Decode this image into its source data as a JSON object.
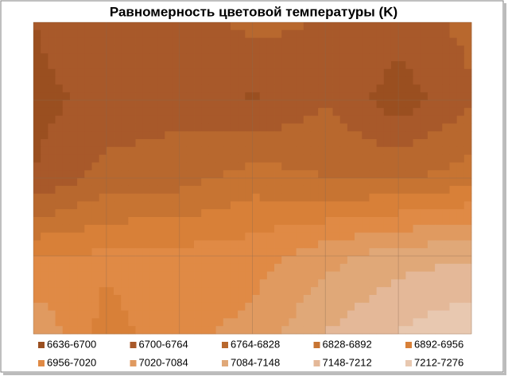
{
  "chart_data": {
    "type": "contour",
    "title": "Равномерность цветовой температуры (K)",
    "levels": [
      6636,
      6700,
      6764,
      6828,
      6892,
      6956,
      7020,
      7084,
      7148,
      7212,
      7276
    ],
    "z": [
      [
        6700,
        6760,
        6740,
        6780,
        6760,
        6740,
        6780
      ],
      [
        6680,
        6720,
        6740,
        6690,
        6760,
        6660,
        6760
      ],
      [
        6700,
        6790,
        6800,
        6860,
        6830,
        6820,
        6860
      ],
      [
        6950,
        6970,
        6980,
        6990,
        7060,
        7120,
        7140
      ],
      [
        7080,
        6930,
        7000,
        7040,
        7150,
        7220,
        7270
      ]
    ],
    "legend": [
      {
        "label": "6636-6700",
        "color": "#9a4f20"
      },
      {
        "label": "6700-6764",
        "color": "#a8592a"
      },
      {
        "label": "6764-6828",
        "color": "#b8682e"
      },
      {
        "label": "6828-6892",
        "color": "#c77432"
      },
      {
        "label": "6892-6956",
        "color": "#d88038"
      },
      {
        "label": "6956-7020",
        "color": "#e08a45"
      },
      {
        "label": "7020-7084",
        "color": "#e09a60"
      },
      {
        "label": "7084-7148",
        "color": "#e0a878"
      },
      {
        "label": "7148-7212",
        "color": "#e4b898"
      },
      {
        "label": "7212-7276",
        "color": "#e8c8b0"
      }
    ]
  }
}
